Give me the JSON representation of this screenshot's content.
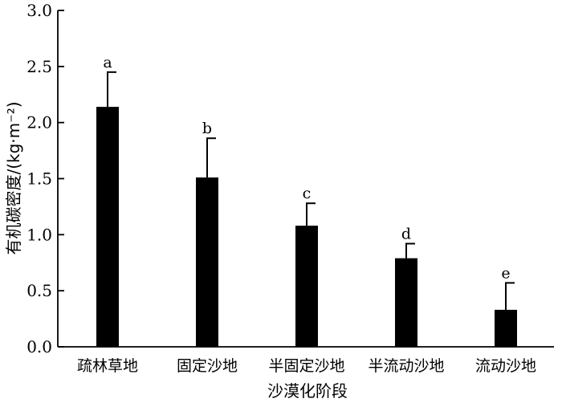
{
  "chart_data": {
    "type": "bar",
    "xlabel": "沙漠化阶段",
    "ylabel": "有机碳密度/(kg·m⁻²)",
    "ylim": [
      0,
      3.0
    ],
    "yticks": [
      "0.0",
      "0.5",
      "1.0",
      "1.5",
      "2.0",
      "2.5",
      "3.0"
    ],
    "categories": [
      "疏林草地",
      "固定沙地",
      "半固定沙地",
      "半流动沙地",
      "流动沙地"
    ],
    "values": [
      2.14,
      1.51,
      1.08,
      0.79,
      0.33
    ],
    "errors": [
      0.31,
      0.35,
      0.2,
      0.13,
      0.24
    ],
    "significance": [
      "a",
      "b",
      "c",
      "d",
      "e"
    ],
    "bar_color": "#000000"
  }
}
